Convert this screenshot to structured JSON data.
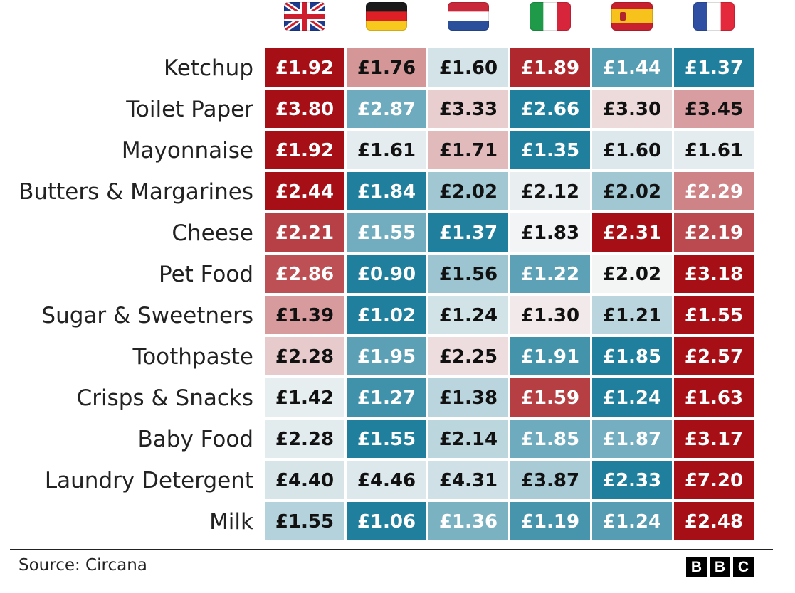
{
  "chart_data": {
    "type": "heatmap",
    "columns": [
      {
        "country": "United Kingdom",
        "flag": "uk-flag-icon"
      },
      {
        "country": "Germany",
        "flag": "germany-flag-icon"
      },
      {
        "country": "Netherlands",
        "flag": "netherlands-flag-icon"
      },
      {
        "country": "Italy",
        "flag": "italy-flag-icon"
      },
      {
        "country": "Spain",
        "flag": "spain-flag-icon"
      },
      {
        "country": "France",
        "flag": "france-flag-icon"
      }
    ],
    "rows": [
      {
        "label": "Ketchup",
        "values": [
          1.92,
          1.76,
          1.6,
          1.89,
          1.44,
          1.37
        ]
      },
      {
        "label": "Toilet Paper",
        "values": [
          3.8,
          2.87,
          3.33,
          2.66,
          3.3,
          3.45
        ]
      },
      {
        "label": "Mayonnaise",
        "values": [
          1.92,
          1.61,
          1.71,
          1.35,
          1.6,
          1.61
        ]
      },
      {
        "label": "Butters & Margarines",
        "values": [
          2.44,
          1.84,
          2.02,
          2.12,
          2.02,
          2.29
        ]
      },
      {
        "label": "Cheese",
        "values": [
          2.21,
          1.55,
          1.37,
          1.83,
          2.31,
          2.19
        ]
      },
      {
        "label": "Pet Food",
        "values": [
          2.86,
          0.9,
          1.56,
          1.22,
          2.02,
          3.18
        ]
      },
      {
        "label": "Sugar & Sweetners",
        "values": [
          1.39,
          1.02,
          1.24,
          1.3,
          1.21,
          1.55
        ]
      },
      {
        "label": "Toothpaste",
        "values": [
          2.28,
          1.95,
          2.25,
          1.91,
          1.85,
          2.57
        ]
      },
      {
        "label": "Crisps & Snacks",
        "values": [
          1.42,
          1.27,
          1.38,
          1.59,
          1.24,
          1.63
        ]
      },
      {
        "label": "Baby Food",
        "values": [
          2.28,
          1.55,
          2.14,
          1.85,
          1.87,
          3.17
        ]
      },
      {
        "label": "Laundry Detergent",
        "values": [
          4.4,
          4.46,
          4.31,
          3.87,
          2.33,
          7.2
        ]
      },
      {
        "label": "Milk",
        "values": [
          1.55,
          1.06,
          1.36,
          1.19,
          1.24,
          2.48
        ]
      }
    ],
    "currency_prefix": "£",
    "colors": {
      "high": "#a50f15",
      "mid": "#f7f7f7",
      "low": "#1f7f9c",
      "dark_text": "#111111",
      "light_text": "#ffffff"
    }
  },
  "footer": {
    "source": "Source: Circana",
    "logo_letters": [
      "B",
      "B",
      "C"
    ]
  }
}
